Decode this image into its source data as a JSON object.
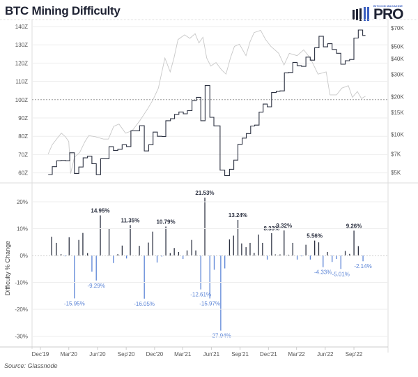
{
  "header": {
    "title": "BTC Mining Difficulty",
    "logo_small": "BITCOIN MAGAZINE",
    "logo_main": "PRO"
  },
  "source": "Source: Glassnode",
  "colors": {
    "difficulty_line": "#2b3040",
    "price_line": "#c8c8c8",
    "positive_bar": "#2b3040",
    "negative_bar": "#5b84d6",
    "reference_line": "#999999"
  },
  "chart_data": [
    {
      "type": "line",
      "left_axis": {
        "ticks": [
          "60Z",
          "70Z",
          "80Z",
          "90Z",
          "100Z",
          "110Z",
          "120Z",
          "130Z",
          "140Z"
        ],
        "tick_values": [
          60,
          70,
          80,
          90,
          100,
          110,
          120,
          130,
          140
        ],
        "range": [
          60,
          140
        ]
      },
      "right_axis": {
        "scale": "log",
        "ticks": [
          "$5K",
          "$7K",
          "$10K",
          "$15K",
          "$20K",
          "$30K",
          "$40K",
          "$50K",
          "$70K"
        ],
        "tick_values": [
          5,
          7,
          10,
          15,
          20,
          30,
          40,
          50,
          70
        ],
        "range": [
          5,
          70
        ]
      },
      "reference_line": 100,
      "grid": true,
      "series": [
        {
          "axis": "left",
          "step": true,
          "points": [
            [
              "2019-12-26",
              59.1
            ],
            [
              "2020-01-08",
              63.4
            ],
            [
              "2020-01-22",
              66.6
            ],
            [
              "2020-02-05",
              66.8
            ],
            [
              "2020-02-19",
              66.6
            ],
            [
              "2020-03-04",
              71.0
            ],
            [
              "2020-03-19",
              59.7
            ],
            [
              "2020-04-02",
              63.2
            ],
            [
              "2020-04-16",
              68.2
            ],
            [
              "2020-04-30",
              69.1
            ],
            [
              "2020-05-14",
              65.0
            ],
            [
              "2020-05-28",
              59.0
            ],
            [
              "2020-06-11",
              67.7
            ],
            [
              "2020-07-08",
              74.3
            ],
            [
              "2020-07-22",
              72.3
            ],
            [
              "2020-08-05",
              72.9
            ],
            [
              "2020-08-19",
              75.4
            ],
            [
              "2020-09-02",
              74.4
            ],
            [
              "2020-09-16",
              83.0
            ],
            [
              "2020-10-14",
              85.8
            ],
            [
              "2020-10-29",
              72.0
            ],
            [
              "2020-11-12",
              75.4
            ],
            [
              "2020-11-26",
              82.3
            ],
            [
              "2020-12-10",
              80.0
            ],
            [
              "2020-12-25",
              79.9
            ],
            [
              "2021-01-06",
              88.5
            ],
            [
              "2021-01-21",
              89.6
            ],
            [
              "2021-02-03",
              92.0
            ],
            [
              "2021-02-17",
              93.3
            ],
            [
              "2021-03-03",
              92.3
            ],
            [
              "2021-03-16",
              94.0
            ],
            [
              "2021-03-31",
              99.5
            ],
            [
              "2021-04-14",
              101.3
            ],
            [
              "2021-04-28",
              88.5
            ],
            [
              "2021-05-12",
              107.7
            ],
            [
              "2021-05-27",
              90.4
            ],
            [
              "2021-06-09",
              85.7
            ],
            [
              "2021-06-29",
              61.5
            ],
            [
              "2021-07-14",
              58.5
            ],
            [
              "2021-07-29",
              62.0
            ],
            [
              "2021-08-12",
              67.0
            ],
            [
              "2021-08-25",
              75.6
            ],
            [
              "2021-09-08",
              79.0
            ],
            [
              "2021-09-21",
              81.5
            ],
            [
              "2021-10-05",
              85.6
            ],
            [
              "2021-10-18",
              86.1
            ],
            [
              "2021-11-01",
              93.2
            ],
            [
              "2021-11-14",
              97.6
            ],
            [
              "2021-11-27",
              96.1
            ],
            [
              "2021-12-11",
              103.9
            ],
            [
              "2021-12-26",
              104.6
            ],
            [
              "2022-01-07",
              104.8
            ],
            [
              "2022-01-21",
              114.7
            ],
            [
              "2022-02-04",
              114.9
            ],
            [
              "2022-02-17",
              120.4
            ],
            [
              "2022-03-03",
              118.6
            ],
            [
              "2022-03-17",
              118.2
            ],
            [
              "2022-03-31",
              123.3
            ],
            [
              "2022-04-14",
              121.6
            ],
            [
              "2022-04-28",
              128.4
            ],
            [
              "2022-05-12",
              134.7
            ],
            [
              "2022-05-26",
              128.9
            ],
            [
              "2022-06-09",
              130.6
            ],
            [
              "2022-06-23",
              127.5
            ],
            [
              "2022-07-07",
              125.4
            ],
            [
              "2022-07-21",
              119.4
            ],
            [
              "2022-08-04",
              121.3
            ],
            [
              "2022-08-18",
              122.0
            ],
            [
              "2022-09-01",
              133.7
            ],
            [
              "2022-09-15",
              138.1
            ],
            [
              "2022-09-29",
              135.1
            ],
            [
              "2022-10-08",
              135.1
            ]
          ]
        },
        {
          "axis": "right",
          "step": false,
          "points": [
            [
              "2019-12-26",
              7.0
            ],
            [
              "2020-01-08",
              8.3
            ],
            [
              "2020-01-25",
              9.4
            ],
            [
              "2020-02-06",
              10.25
            ],
            [
              "2020-02-19",
              9.6
            ],
            [
              "2020-03-01",
              8.8
            ],
            [
              "2020-03-07",
              4.9
            ],
            [
              "2020-03-19",
              6.6
            ],
            [
              "2020-04-05",
              7.2
            ],
            [
              "2020-04-22",
              8.8
            ],
            [
              "2020-05-04",
              9.8
            ],
            [
              "2020-05-25",
              9.6
            ],
            [
              "2020-06-20",
              9.2
            ],
            [
              "2020-07-06",
              9.2
            ],
            [
              "2020-07-23",
              11.6
            ],
            [
              "2020-08-09",
              12.1
            ],
            [
              "2020-08-30",
              10.25
            ],
            [
              "2020-09-20",
              10.7
            ],
            [
              "2020-10-15",
              12.9
            ],
            [
              "2020-11-09",
              16.0
            ],
            [
              "2020-11-26",
              18.9
            ],
            [
              "2020-12-13",
              23.3
            ],
            [
              "2020-12-26",
              32.7
            ],
            [
              "2021-01-03",
              40.4
            ],
            [
              "2021-01-20",
              31.4
            ],
            [
              "2021-02-01",
              40.4
            ],
            [
              "2021-02-14",
              56.6
            ],
            [
              "2021-03-07",
              61.7
            ],
            [
              "2021-03-24",
              57.9
            ],
            [
              "2021-04-10",
              63.0
            ],
            [
              "2021-04-22",
              53.2
            ],
            [
              "2021-05-05",
              59.0
            ],
            [
              "2021-05-17",
              40.4
            ],
            [
              "2021-05-30",
              34.9
            ],
            [
              "2021-06-16",
              37.2
            ],
            [
              "2021-07-03",
              32.7
            ],
            [
              "2021-07-18",
              30.1
            ],
            [
              "2021-08-01",
              40.4
            ],
            [
              "2021-08-14",
              49.9
            ],
            [
              "2021-08-30",
              52.0
            ],
            [
              "2021-09-20",
              42.2
            ],
            [
              "2021-10-03",
              54.3
            ],
            [
              "2021-10-16",
              64.3
            ],
            [
              "2021-11-06",
              67.0
            ],
            [
              "2021-11-22",
              56.6
            ],
            [
              "2021-12-09",
              49.9
            ],
            [
              "2022-01-03",
              44.0
            ],
            [
              "2022-01-20",
              35.6
            ],
            [
              "2022-02-06",
              44.0
            ],
            [
              "2022-03-03",
              42.2
            ],
            [
              "2022-03-24",
              46.9
            ],
            [
              "2022-04-14",
              40.4
            ],
            [
              "2022-05-09",
              30.1
            ],
            [
              "2022-06-04",
              31.4
            ],
            [
              "2022-06-16",
              20.6
            ],
            [
              "2022-07-07",
              20.6
            ],
            [
              "2022-07-24",
              23.3
            ],
            [
              "2022-08-14",
              24.4
            ],
            [
              "2022-08-27",
              19.7
            ],
            [
              "2022-09-12",
              21.9
            ],
            [
              "2022-09-25",
              19.3
            ],
            [
              "2022-10-08",
              20.1
            ]
          ]
        }
      ]
    },
    {
      "type": "bar",
      "ylabel": "Difficulty % Change",
      "y_axis": {
        "ticks": [
          "-30%",
          "-20%",
          "-10%",
          "0%",
          "10%",
          "20%"
        ],
        "tick_values": [
          -30,
          -20,
          -10,
          0,
          10,
          20
        ]
      },
      "x_axis": {
        "ticks": [
          "Dec'19",
          "Mar'20",
          "Jun'20",
          "Sep'20",
          "Dec'20",
          "Mar'21",
          "Jun'21",
          "Sep'21",
          "Dec'21",
          "Mar'22",
          "Jun'22",
          "Sep'22"
        ],
        "tick_dates": [
          "2019-12-01",
          "2020-03-01",
          "2020-06-01",
          "2020-09-01",
          "2020-12-01",
          "2021-03-01",
          "2021-06-01",
          "2021-09-01",
          "2021-12-01",
          "2022-03-01",
          "2022-06-01",
          "2022-09-01"
        ]
      },
      "grid": true,
      "values": [
        [
          "2020-01-06",
          7.0
        ],
        [
          "2020-01-21",
          4.7
        ],
        [
          "2020-02-05",
          0.5
        ],
        [
          "2020-02-18",
          -0.3
        ],
        [
          "2020-03-02",
          6.8
        ],
        [
          "2020-03-19",
          -15.95
        ],
        [
          "2020-04-02",
          5.8
        ],
        [
          "2020-04-15",
          8.4
        ],
        [
          "2020-04-30",
          0.9
        ],
        [
          "2020-05-14",
          -6.0
        ],
        [
          "2020-05-28",
          -9.29
        ],
        [
          "2020-06-10",
          14.95
        ],
        [
          "2020-07-08",
          9.9
        ],
        [
          "2020-07-22",
          -2.8
        ],
        [
          "2020-08-05",
          0.5
        ],
        [
          "2020-08-19",
          3.7
        ],
        [
          "2020-09-02",
          -1.1
        ],
        [
          "2020-09-14",
          11.35
        ],
        [
          "2020-10-13",
          3.6
        ],
        [
          "2020-10-29",
          -16.05
        ],
        [
          "2020-11-11",
          4.8
        ],
        [
          "2020-11-25",
          8.9
        ],
        [
          "2020-12-09",
          -2.6
        ],
        [
          "2020-12-24",
          -0.4
        ],
        [
          "2021-01-06",
          10.79
        ],
        [
          "2021-01-20",
          0.9
        ],
        [
          "2021-02-02",
          2.8
        ],
        [
          "2021-02-16",
          1.3
        ],
        [
          "2021-03-02",
          -1.3
        ],
        [
          "2021-03-15",
          1.9
        ],
        [
          "2021-03-30",
          5.8
        ],
        [
          "2021-04-12",
          1.9
        ],
        [
          "2021-04-28",
          -12.61
        ],
        [
          "2021-05-11",
          21.53
        ],
        [
          "2021-05-27",
          -15.97
        ],
        [
          "2021-06-10",
          -5.3
        ],
        [
          "2021-07-01",
          -27.94
        ],
        [
          "2021-07-14",
          -4.8
        ],
        [
          "2021-07-29",
          6.0
        ],
        [
          "2021-08-11",
          7.4
        ],
        [
          "2021-08-25",
          13.24
        ],
        [
          "2021-09-06",
          4.5
        ],
        [
          "2021-09-20",
          3.1
        ],
        [
          "2021-10-03",
          4.7
        ],
        [
          "2021-10-16",
          1.0
        ],
        [
          "2021-10-30",
          7.8
        ],
        [
          "2021-11-12",
          4.7
        ],
        [
          "2021-11-27",
          -1.5
        ],
        [
          "2021-12-11",
          8.33
        ],
        [
          "2021-12-23",
          0.4
        ],
        [
          "2022-01-07",
          0.4
        ],
        [
          "2022-01-20",
          9.32
        ],
        [
          "2022-02-03",
          0.3
        ],
        [
          "2022-02-17",
          4.7
        ],
        [
          "2022-03-03",
          -1.5
        ],
        [
          "2022-03-17",
          -0.3
        ],
        [
          "2022-03-31",
          4.0
        ],
        [
          "2022-04-14",
          -1.5
        ],
        [
          "2022-04-28",
          5.56
        ],
        [
          "2022-05-11",
          4.9
        ],
        [
          "2022-05-25",
          -4.33
        ],
        [
          "2022-06-08",
          1.3
        ],
        [
          "2022-06-23",
          -2.4
        ],
        [
          "2022-07-07",
          -1.3
        ],
        [
          "2022-07-21",
          -5.01
        ],
        [
          "2022-08-04",
          1.7
        ],
        [
          "2022-08-18",
          0.6
        ],
        [
          "2022-09-01",
          9.26
        ],
        [
          "2022-09-15",
          3.5
        ],
        [
          "2022-09-30",
          -2.14
        ]
      ],
      "annotations": [
        "-15.95%",
        "-9.29%",
        "14.95%",
        "11.35%",
        "-16.05%",
        "10.79%",
        "-12.61%",
        "21.53%",
        "-15.97%",
        "-27.94%",
        "13.24%",
        "8.33%",
        "9.32%",
        "5.56%",
        "-4.33%",
        "-5.01%",
        "9.26%",
        "-2.14%"
      ],
      "annotation_values": [
        -15.95,
        -9.29,
        14.95,
        11.35,
        -16.05,
        10.79,
        -12.61,
        21.53,
        -15.97,
        -27.94,
        13.24,
        8.33,
        9.32,
        5.56,
        -4.33,
        -5.01,
        9.26,
        -2.14
      ]
    }
  ]
}
